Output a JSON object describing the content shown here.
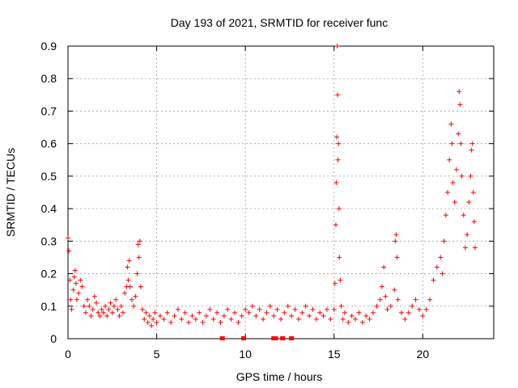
{
  "chart_data": {
    "type": "scatter",
    "title": "Day 193 of 2021, SRMTID for receiver func",
    "xlabel": "GPS time / hours",
    "ylabel": "SRMTID / TECUs",
    "xlim": [
      0,
      24
    ],
    "ylim": [
      0,
      0.9
    ],
    "x_ticks": [
      0,
      5,
      10,
      15,
      20
    ],
    "y_ticks": [
      0,
      0.1,
      0.2,
      0.3,
      0.4,
      0.5,
      0.6,
      0.7,
      0.8,
      0.9
    ],
    "x_tick_labels": [
      "0",
      "5",
      "10",
      "15",
      "20"
    ],
    "y_tick_labels": [
      "0",
      "0.1",
      "0.2",
      "0.3",
      "0.4",
      "0.5",
      "0.6",
      "0.7",
      "0.8",
      "0.9"
    ],
    "grid": true,
    "marker": "+",
    "color": "#ff0000",
    "series": [
      {
        "name": "SRMTID",
        "points": [
          [
            0.0,
            0.31
          ],
          [
            0.05,
            0.27
          ],
          [
            0.1,
            0.18
          ],
          [
            0.15,
            0.12
          ],
          [
            0.2,
            0.09
          ],
          [
            0.3,
            0.15
          ],
          [
            0.35,
            0.19
          ],
          [
            0.4,
            0.21
          ],
          [
            0.45,
            0.17
          ],
          [
            0.5,
            0.12
          ],
          [
            0.6,
            0.14
          ],
          [
            0.7,
            0.18
          ],
          [
            0.8,
            0.16
          ],
          [
            0.9,
            0.1
          ],
          [
            1.0,
            0.08
          ],
          [
            1.1,
            0.12
          ],
          [
            1.2,
            0.1
          ],
          [
            1.3,
            0.07
          ],
          [
            1.4,
            0.09
          ],
          [
            1.5,
            0.13
          ],
          [
            1.6,
            0.11
          ],
          [
            1.7,
            0.08
          ],
          [
            1.8,
            0.07
          ],
          [
            1.9,
            0.09
          ],
          [
            2.0,
            0.08
          ],
          [
            2.1,
            0.1
          ],
          [
            2.2,
            0.07
          ],
          [
            2.3,
            0.09
          ],
          [
            2.4,
            0.11
          ],
          [
            2.5,
            0.08
          ],
          [
            2.6,
            0.1
          ],
          [
            2.7,
            0.12
          ],
          [
            2.8,
            0.09
          ],
          [
            2.9,
            0.07
          ],
          [
            3.0,
            0.1
          ],
          [
            3.1,
            0.08
          ],
          [
            3.2,
            0.14
          ],
          [
            3.3,
            0.16
          ],
          [
            3.35,
            0.22
          ],
          [
            3.4,
            0.18
          ],
          [
            3.45,
            0.24
          ],
          [
            3.5,
            0.16
          ],
          [
            3.6,
            0.12
          ],
          [
            3.7,
            0.1
          ],
          [
            3.8,
            0.13
          ],
          [
            3.9,
            0.2
          ],
          [
            3.95,
            0.29
          ],
          [
            4.0,
            0.25
          ],
          [
            4.05,
            0.3
          ],
          [
            4.1,
            0.16
          ],
          [
            4.2,
            0.09
          ],
          [
            4.3,
            0.06
          ],
          [
            4.4,
            0.08
          ],
          [
            4.5,
            0.05
          ],
          [
            4.6,
            0.07
          ],
          [
            4.7,
            0.04
          ],
          [
            4.8,
            0.06
          ],
          [
            4.9,
            0.08
          ],
          [
            5.0,
            0.05
          ],
          [
            5.2,
            0.07
          ],
          [
            5.4,
            0.06
          ],
          [
            5.6,
            0.08
          ],
          [
            5.8,
            0.05
          ],
          [
            6.0,
            0.07
          ],
          [
            6.2,
            0.09
          ],
          [
            6.4,
            0.06
          ],
          [
            6.6,
            0.08
          ],
          [
            6.8,
            0.05
          ],
          [
            7.0,
            0.07
          ],
          [
            7.2,
            0.06
          ],
          [
            7.4,
            0.08
          ],
          [
            7.6,
            0.05
          ],
          [
            7.8,
            0.07
          ],
          [
            8.0,
            0.09
          ],
          [
            8.2,
            0.06
          ],
          [
            8.4,
            0.08
          ],
          [
            8.6,
            0.05
          ],
          [
            8.8,
            0.07
          ],
          [
            9.0,
            0.09
          ],
          [
            9.2,
            0.06
          ],
          [
            9.4,
            0.08
          ],
          [
            9.6,
            0.05
          ],
          [
            9.8,
            0.07
          ],
          [
            10.0,
            0.09
          ],
          [
            10.2,
            0.08
          ],
          [
            10.4,
            0.1
          ],
          [
            10.6,
            0.07
          ],
          [
            10.8,
            0.09
          ],
          [
            11.0,
            0.06
          ],
          [
            11.2,
            0.08
          ],
          [
            11.4,
            0.1
          ],
          [
            11.6,
            0.07
          ],
          [
            11.8,
            0.09
          ],
          [
            12.0,
            0.06
          ],
          [
            12.2,
            0.08
          ],
          [
            12.4,
            0.1
          ],
          [
            12.6,
            0.07
          ],
          [
            12.8,
            0.09
          ],
          [
            13.0,
            0.06
          ],
          [
            13.2,
            0.08
          ],
          [
            13.4,
            0.1
          ],
          [
            13.6,
            0.07
          ],
          [
            13.8,
            0.09
          ],
          [
            14.0,
            0.06
          ],
          [
            14.2,
            0.08
          ],
          [
            14.4,
            0.07
          ],
          [
            14.6,
            0.09
          ],
          [
            14.8,
            0.06
          ],
          [
            15.0,
            0.09
          ],
          [
            15.05,
            0.17
          ],
          [
            15.1,
            0.35
          ],
          [
            15.12,
            0.48
          ],
          [
            15.15,
            0.62
          ],
          [
            15.18,
            0.9
          ],
          [
            15.2,
            0.75
          ],
          [
            15.22,
            0.55
          ],
          [
            15.25,
            0.6
          ],
          [
            15.28,
            0.4
          ],
          [
            15.3,
            0.25
          ],
          [
            15.35,
            0.18
          ],
          [
            15.4,
            0.1
          ],
          [
            15.5,
            0.06
          ],
          [
            15.6,
            0.08
          ],
          [
            15.8,
            0.05
          ],
          [
            16.0,
            0.07
          ],
          [
            16.2,
            0.06
          ],
          [
            16.4,
            0.08
          ],
          [
            16.6,
            0.05
          ],
          [
            16.8,
            0.07
          ],
          [
            17.0,
            0.06
          ],
          [
            17.2,
            0.08
          ],
          [
            17.4,
            0.1
          ],
          [
            17.6,
            0.12
          ],
          [
            17.7,
            0.16
          ],
          [
            17.8,
            0.22
          ],
          [
            17.9,
            0.13
          ],
          [
            18.0,
            0.09
          ],
          [
            18.2,
            0.1
          ],
          [
            18.4,
            0.15
          ],
          [
            18.45,
            0.3
          ],
          [
            18.5,
            0.32
          ],
          [
            18.55,
            0.25
          ],
          [
            18.6,
            0.12
          ],
          [
            18.8,
            0.08
          ],
          [
            19.0,
            0.06
          ],
          [
            19.2,
            0.08
          ],
          [
            19.4,
            0.1
          ],
          [
            19.6,
            0.12
          ],
          [
            19.8,
            0.09
          ],
          [
            20.0,
            0.07
          ],
          [
            20.2,
            0.09
          ],
          [
            20.4,
            0.12
          ],
          [
            20.6,
            0.18
          ],
          [
            20.8,
            0.22
          ],
          [
            21.0,
            0.25
          ],
          [
            21.1,
            0.2
          ],
          [
            21.2,
            0.3
          ],
          [
            21.3,
            0.38
          ],
          [
            21.4,
            0.45
          ],
          [
            21.5,
            0.55
          ],
          [
            21.6,
            0.66
          ],
          [
            21.65,
            0.6
          ],
          [
            21.7,
            0.48
          ],
          [
            21.8,
            0.42
          ],
          [
            21.9,
            0.52
          ],
          [
            22.0,
            0.63
          ],
          [
            22.05,
            0.76
          ],
          [
            22.1,
            0.72
          ],
          [
            22.15,
            0.6
          ],
          [
            22.2,
            0.5
          ],
          [
            22.3,
            0.38
          ],
          [
            22.4,
            0.28
          ],
          [
            22.5,
            0.32
          ],
          [
            22.6,
            0.42
          ],
          [
            22.7,
            0.5
          ],
          [
            22.75,
            0.58
          ],
          [
            22.8,
            0.6
          ],
          [
            22.85,
            0.45
          ],
          [
            22.9,
            0.36
          ],
          [
            22.95,
            0.28
          ]
        ]
      }
    ],
    "gap_markers_x": [
      8.7,
      9.9,
      11.6,
      11.7,
      12.1,
      12.6
    ]
  }
}
